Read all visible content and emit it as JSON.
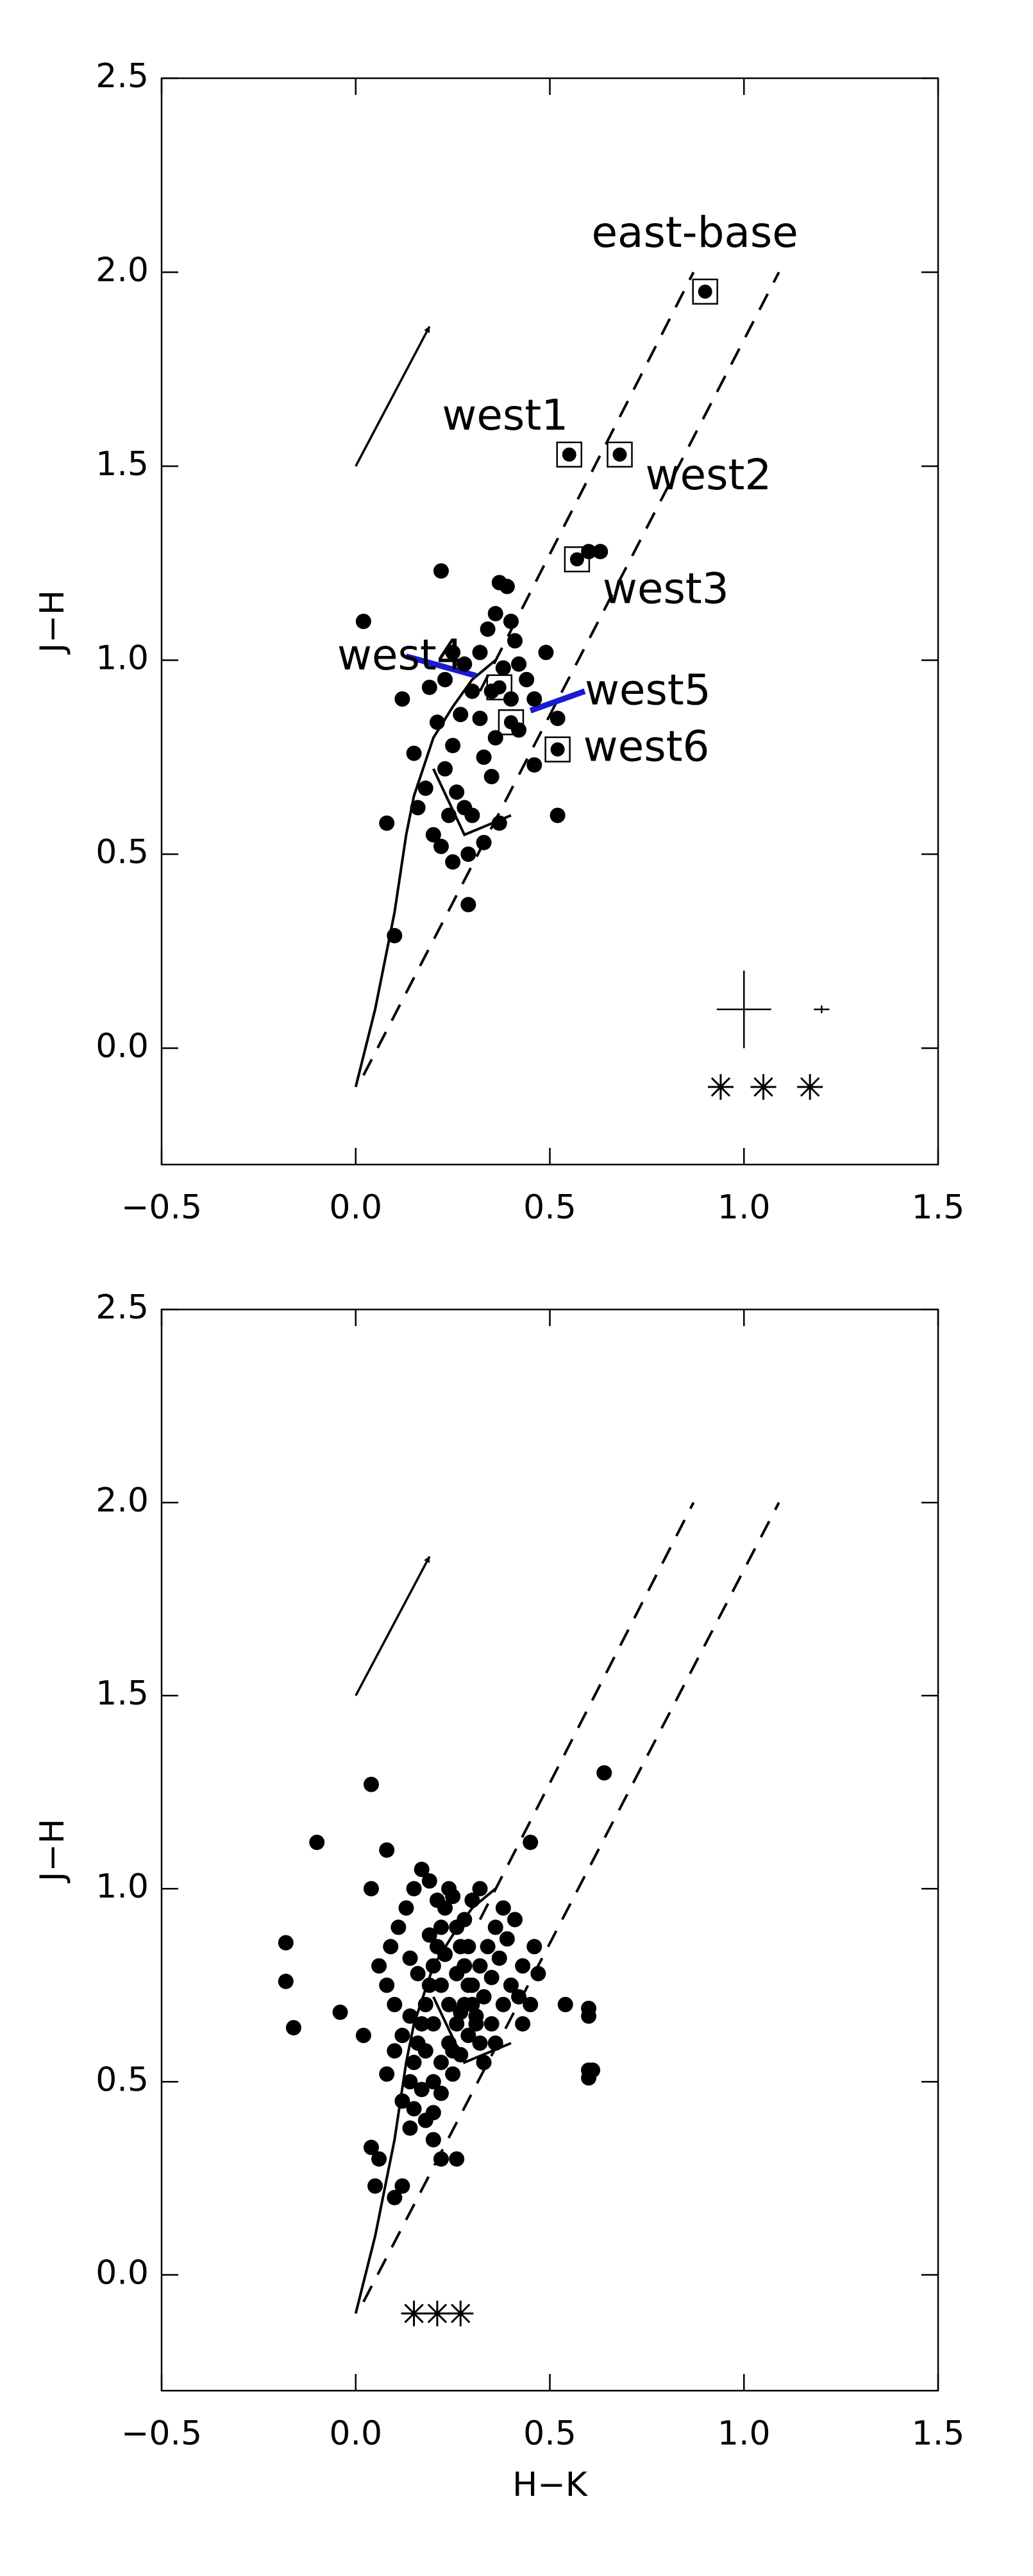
{
  "chart_data": [
    {
      "type": "scatter",
      "y_label": "J−H",
      "xlim": [
        -0.5,
        1.5
      ],
      "ylim": [
        -0.3,
        2.5
      ],
      "xticks": [
        {
          "value": -0.5,
          "label": "−0.5"
        },
        {
          "value": 0,
          "label": "0.0"
        },
        {
          "value": 0.5,
          "label": "0.5"
        },
        {
          "value": 1,
          "label": "1.0"
        },
        {
          "value": 1.5,
          "label": "1.5"
        }
      ],
      "yticks": [
        {
          "value": 0,
          "label": "0.0"
        },
        {
          "value": 0.5,
          "label": "0.5"
        },
        {
          "value": 1,
          "label": "1.0"
        },
        {
          "value": 1.5,
          "label": "1.5"
        },
        {
          "value": 2,
          "label": "2.0"
        },
        {
          "value": 2.5,
          "label": "2.5"
        }
      ],
      "color": "#000000",
      "x": [
        0.1,
        0.08,
        0.02,
        0.22,
        0.15,
        0.12,
        0.16,
        0.18,
        0.2,
        0.22,
        0.25,
        0.24,
        0.26,
        0.28,
        0.23,
        0.25,
        0.27,
        0.21,
        0.23,
        0.19,
        0.3,
        0.28,
        0.32,
        0.34,
        0.37,
        0.39,
        0.4,
        0.41,
        0.38,
        0.35,
        0.36,
        0.33,
        0.35,
        0.37,
        0.3,
        0.29,
        0.33,
        0.29,
        0.44,
        0.46,
        0.49,
        0.52,
        0.52,
        0.46,
        0.42,
        0.4,
        0.25,
        0.32,
        0.36,
        0.6,
        0.63,
        0.42
      ],
      "values": [
        0.29,
        0.58,
        1.1,
        1.23,
        0.76,
        0.9,
        0.62,
        0.67,
        0.55,
        0.52,
        0.48,
        0.6,
        0.66,
        0.62,
        0.72,
        0.78,
        0.86,
        0.84,
        0.95,
        0.93,
        0.92,
        0.99,
        1.02,
        1.08,
        1.2,
        1.19,
        1.1,
        1.05,
        0.98,
        0.92,
        0.8,
        0.75,
        0.7,
        0.58,
        0.6,
        0.5,
        0.53,
        0.37,
        0.95,
        0.9,
        1.02,
        0.85,
        0.6,
        0.73,
        0.82,
        0.9,
        1.02,
        0.85,
        1.12,
        1.28,
        1.28,
        0.99
      ],
      "labeled_points": [
        {
          "label": "east-base",
          "x": 0.9,
          "y": 1.95
        },
        {
          "label": "west1",
          "x": 0.55,
          "y": 1.53
        },
        {
          "label": "west2",
          "x": 0.68,
          "y": 1.53
        },
        {
          "label": "west3",
          "x": 0.57,
          "y": 1.26
        },
        {
          "label": "west4",
          "x": 0.37,
          "y": 0.93
        },
        {
          "label": "west5",
          "x": 0.4,
          "y": 0.84
        },
        {
          "label": "west6",
          "x": 0.52,
          "y": 0.77
        }
      ],
      "lines": [
        {
          "x": [
            0,
            0.05,
            0.1,
            0.13,
            0.15,
            0.2,
            0.25,
            0.3,
            0.36
          ],
          "y": [
            -0.1,
            0.1,
            0.35,
            0.55,
            0.65,
            0.8,
            0.88,
            0.95,
            1.0
          ],
          "style": "solid",
          "color": "#000000"
        },
        {
          "x": [
            0.2,
            0.28,
            0.4
          ],
          "y": [
            0.72,
            0.55,
            0.6
          ],
          "style": "solid",
          "color": "#000000"
        },
        {
          "x": [
            0.32,
            0.87
          ],
          "y": [
            0.92,
            2.0
          ],
          "style": "dashed",
          "color": "#000000"
        },
        {
          "x": [
            0.02,
            1.09
          ],
          "y": [
            -0.07,
            2.0
          ],
          "style": "dashed",
          "color": "#000000"
        },
        {
          "x": [
            0.13,
            0.31
          ],
          "y": [
            1.01,
            0.96
          ],
          "style": "solid",
          "color": "#1a1ad0",
          "width": 3
        },
        {
          "x": [
            0.45,
            0.59
          ],
          "y": [
            0.87,
            0.92
          ],
          "style": "solid",
          "color": "#1a1ad0",
          "width": 3
        }
      ],
      "arrow": {
        "x": [
          0,
          0.19
        ],
        "y": [
          1.5,
          1.86
        ]
      },
      "error_bars": [
        {
          "x": 1.0,
          "y": 0.1,
          "xerr": 0.07,
          "yerr": 0.1
        },
        {
          "x": 1.2,
          "y": 0.1,
          "xerr": 0.02,
          "yerr": 0.01
        }
      ],
      "stars": {
        "x": [
          0.94,
          1.05,
          1.17
        ],
        "y": [
          -0.1,
          -0.1,
          -0.1
        ]
      }
    },
    {
      "type": "scatter",
      "x_label": "H−K",
      "y_label": "J−H",
      "xlim": [
        -0.5,
        1.5
      ],
      "ylim": [
        -0.3,
        2.5
      ],
      "xticks": [
        {
          "value": -0.5,
          "label": "−0.5"
        },
        {
          "value": 0,
          "label": "0.0"
        },
        {
          "value": 0.5,
          "label": "0.5"
        },
        {
          "value": 1,
          "label": "1.0"
        },
        {
          "value": 1.5,
          "label": "1.5"
        }
      ],
      "yticks": [
        {
          "value": 0,
          "label": "0.0"
        },
        {
          "value": 0.5,
          "label": "0.5"
        },
        {
          "value": 1,
          "label": "1.0"
        },
        {
          "value": 1.5,
          "label": "1.5"
        },
        {
          "value": 2,
          "label": "2.0"
        },
        {
          "value": 2.5,
          "label": "2.5"
        }
      ],
      "color": "#000000",
      "x": [
        -0.18,
        -0.18,
        -0.16,
        -0.1,
        0.04,
        0.64,
        0.54,
        0.6,
        0.6,
        0.61,
        0.6,
        0.6,
        0.05,
        0.1,
        0.12,
        0.06,
        0.04,
        0.26,
        0.22,
        0.14,
        -0.04,
        0.02,
        0.04,
        0.08,
        0.45,
        0.43,
        0.46,
        0.47,
        0.45,
        0.43,
        0.12,
        0.14,
        0.15,
        0.16,
        0.17,
        0.18,
        0.19,
        0.2,
        0.21,
        0.22,
        0.23,
        0.24,
        0.25,
        0.26,
        0.27,
        0.28,
        0.29,
        0.3,
        0.31,
        0.32,
        0.33,
        0.2,
        0.22,
        0.24,
        0.26,
        0.28,
        0.3,
        0.32,
        0.34,
        0.36,
        0.38,
        0.18,
        0.2,
        0.22,
        0.25,
        0.27,
        0.29,
        0.31,
        0.33,
        0.35,
        0.37,
        0.39,
        0.41,
        0.1,
        0.08,
        0.06,
        0.09,
        0.11,
        0.13,
        0.15,
        0.17,
        0.19,
        0.21,
        0.14,
        0.16,
        0.12,
        0.1,
        0.08,
        0.14,
        0.24,
        0.26,
        0.22,
        0.2,
        0.18,
        0.28,
        0.3,
        0.32,
        0.35,
        0.38,
        0.4,
        0.17,
        0.2,
        0.15,
        0.36,
        0.42,
        0.27,
        0.23,
        0.19,
        0.25,
        0.29
      ],
      "values": [
        0.86,
        0.76,
        0.64,
        1.12,
        1.27,
        1.3,
        0.7,
        0.69,
        0.67,
        0.53,
        0.51,
        0.53,
        0.23,
        0.2,
        0.23,
        0.3,
        0.33,
        0.3,
        0.3,
        0.38,
        0.68,
        0.62,
        1.0,
        1.1,
        1.12,
        0.8,
        0.85,
        0.78,
        0.7,
        0.65,
        0.45,
        0.5,
        0.55,
        0.6,
        0.65,
        0.7,
        0.75,
        0.8,
        0.85,
        0.9,
        0.95,
        1.0,
        0.98,
        0.9,
        0.85,
        0.8,
        0.75,
        0.7,
        0.65,
        0.6,
        0.55,
        0.5,
        0.55,
        0.6,
        0.65,
        0.7,
        0.75,
        0.8,
        0.85,
        0.9,
        0.95,
        0.4,
        0.42,
        0.47,
        0.52,
        0.57,
        0.62,
        0.67,
        0.72,
        0.77,
        0.82,
        0.87,
        0.92,
        0.7,
        0.75,
        0.8,
        0.85,
        0.9,
        0.95,
        1.0,
        1.05,
        1.02,
        0.97,
        0.82,
        0.78,
        0.62,
        0.58,
        0.52,
        0.67,
        0.7,
        0.78,
        0.75,
        0.65,
        0.58,
        0.92,
        0.97,
        1.0,
        0.65,
        0.7,
        0.75,
        0.48,
        0.35,
        0.43,
        0.6,
        0.72,
        0.68,
        0.83,
        0.88,
        0.58,
        0.85
      ],
      "lines": [
        {
          "x": [
            0,
            0.05,
            0.1,
            0.13,
            0.15,
            0.2,
            0.25,
            0.3,
            0.36
          ],
          "y": [
            -0.1,
            0.1,
            0.35,
            0.55,
            0.65,
            0.8,
            0.88,
            0.95,
            1.0
          ],
          "style": "solid",
          "color": "#000000"
        },
        {
          "x": [
            0.2,
            0.28,
            0.4
          ],
          "y": [
            0.72,
            0.55,
            0.6
          ],
          "style": "solid",
          "color": "#000000"
        },
        {
          "x": [
            0.32,
            0.87
          ],
          "y": [
            0.92,
            2.0
          ],
          "style": "dashed",
          "color": "#000000"
        },
        {
          "x": [
            0.02,
            1.09
          ],
          "y": [
            -0.07,
            2.0
          ],
          "style": "dashed",
          "color": "#000000"
        }
      ],
      "arrow": {
        "x": [
          0,
          0.19
        ],
        "y": [
          1.5,
          1.86
        ]
      },
      "stars": {
        "x": [
          0.15,
          0.21,
          0.27
        ],
        "y": [
          -0.1,
          -0.1,
          -0.1
        ]
      }
    }
  ]
}
